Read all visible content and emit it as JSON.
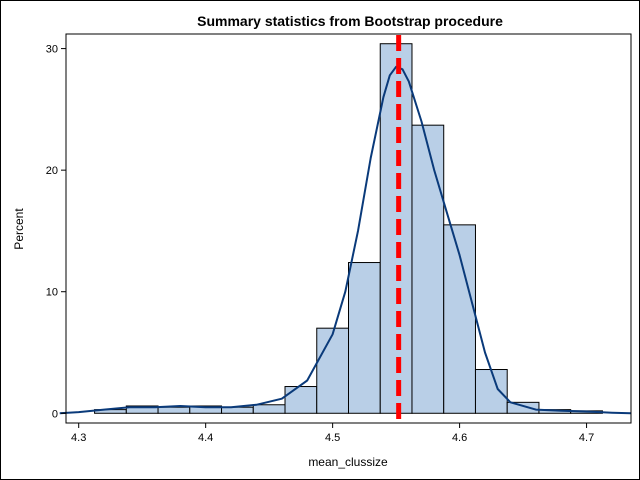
{
  "chart_data": {
    "type": "bar",
    "title": "Summary statistics from Bootstrap procedure",
    "xlabel": "mean_clussize",
    "ylabel": "Percent",
    "xlim": [
      4.29,
      4.735
    ],
    "ylim": [
      -0.8,
      31.2
    ],
    "xticks": [
      4.3,
      4.4,
      4.5,
      4.6,
      4.7
    ],
    "xtick_labels": [
      "4.3",
      "4.4",
      "4.5",
      "4.6",
      "4.7"
    ],
    "yticks": [
      0,
      10,
      20,
      30
    ],
    "ytick_labels": [
      "0",
      "10",
      "20",
      "30"
    ],
    "bin_width": 0.025,
    "bins": [
      {
        "x0": 4.3125,
        "x1": 4.3375,
        "value": 0.3
      },
      {
        "x0": 4.3375,
        "x1": 4.3625,
        "value": 0.6
      },
      {
        "x0": 4.3625,
        "x1": 4.3875,
        "value": 0.5
      },
      {
        "x0": 4.3875,
        "x1": 4.4125,
        "value": 0.6
      },
      {
        "x0": 4.4125,
        "x1": 4.4375,
        "value": 0.5
      },
      {
        "x0": 4.4375,
        "x1": 4.4625,
        "value": 0.7
      },
      {
        "x0": 4.4625,
        "x1": 4.4875,
        "value": 2.2
      },
      {
        "x0": 4.4875,
        "x1": 4.5125,
        "value": 7.0
      },
      {
        "x0": 4.5125,
        "x1": 4.5375,
        "value": 12.4
      },
      {
        "x0": 4.5375,
        "x1": 4.5625,
        "value": 30.4
      },
      {
        "x0": 4.5625,
        "x1": 4.5875,
        "value": 23.7
      },
      {
        "x0": 4.5875,
        "x1": 4.6125,
        "value": 15.5
      },
      {
        "x0": 4.6125,
        "x1": 4.6375,
        "value": 3.6
      },
      {
        "x0": 4.6375,
        "x1": 4.6625,
        "value": 0.9
      },
      {
        "x0": 4.6625,
        "x1": 4.6875,
        "value": 0.3
      },
      {
        "x0": 4.6875,
        "x1": 4.7125,
        "value": 0.2
      }
    ],
    "density_curve": {
      "x": [
        4.285,
        4.3,
        4.32,
        4.34,
        4.36,
        4.38,
        4.4,
        4.42,
        4.44,
        4.46,
        4.48,
        4.5,
        4.51,
        4.52,
        4.53,
        4.54,
        4.545,
        4.55,
        4.555,
        4.56,
        4.57,
        4.58,
        4.59,
        4.6,
        4.61,
        4.62,
        4.63,
        4.64,
        4.66,
        4.68,
        4.7,
        4.72,
        4.735
      ],
      "y": [
        0.0,
        0.1,
        0.3,
        0.5,
        0.5,
        0.6,
        0.5,
        0.5,
        0.7,
        1.2,
        2.7,
        6.5,
        10.0,
        15.0,
        21.0,
        26.0,
        27.8,
        28.5,
        28.3,
        27.3,
        24.0,
        20.0,
        16.5,
        13.0,
        9.0,
        5.0,
        2.0,
        0.9,
        0.3,
        0.2,
        0.15,
        0.05,
        0.0
      ]
    },
    "reference_line": {
      "x": 4.552,
      "style": "dashed"
    },
    "colors": {
      "bar_fill": "#b9cfe7",
      "bar_edge": "#000000",
      "curve": "#0a3a7a",
      "reference_line": "#ff0000"
    },
    "grid": false,
    "legend": "none"
  }
}
